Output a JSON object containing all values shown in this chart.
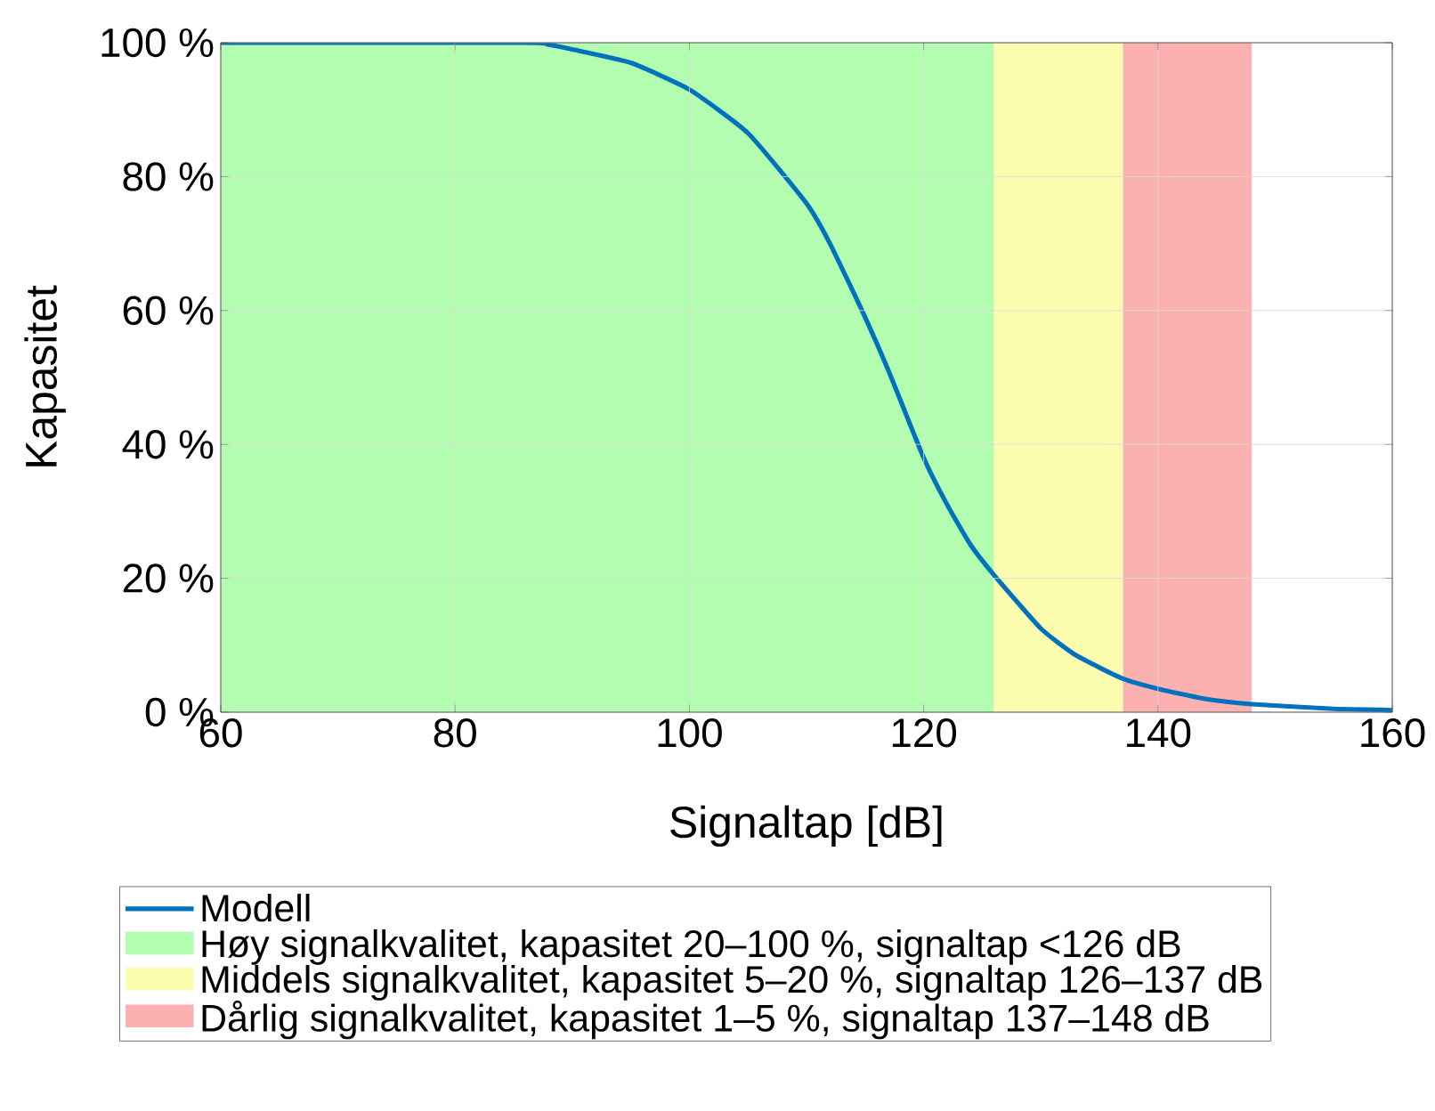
{
  "chart_data": {
    "type": "line",
    "xlabel": "Signaltap [dB]",
    "ylabel": "Kapasitet",
    "x": [
      60,
      86,
      88,
      90,
      95,
      100,
      105,
      110,
      112,
      115,
      117,
      120,
      122,
      124,
      126,
      130,
      133,
      137,
      140,
      144,
      148,
      155,
      160
    ],
    "series": [
      {
        "name": "Modell",
        "color": "#0072bd",
        "values": [
          100,
          100,
          99.7,
          99,
          97,
          93,
          86.5,
          76,
          70,
          59,
          51,
          38,
          31,
          25,
          20.5,
          12.5,
          8.5,
          5,
          3.5,
          2,
          1.2,
          0.5,
          0.3
        ]
      }
    ],
    "xlim": [
      60,
      160
    ],
    "ylim": [
      0,
      100
    ],
    "xticks": [
      60,
      80,
      100,
      120,
      140,
      160
    ],
    "yticks": [
      {
        "value": 0,
        "label": "0 %"
      },
      {
        "value": 20,
        "label": "20 %"
      },
      {
        "value": 40,
        "label": "40 %"
      },
      {
        "value": 60,
        "label": "60 %"
      },
      {
        "value": 80,
        "label": "80 %"
      },
      {
        "value": 100,
        "label": "100 %"
      }
    ],
    "bands": [
      {
        "axis": "x",
        "from": 60,
        "to": 126,
        "label": "Høy signalkvalitet, kapasitet 20–100 %, signaltap <126 dB",
        "color": "#b3fdb0"
      },
      {
        "axis": "x",
        "from": 126,
        "to": 137,
        "label": "Middels signalkvalitet, kapasitet 5–20 %, signaltap 126–137 dB",
        "color": "#fdfdb0"
      },
      {
        "axis": "x",
        "from": 137,
        "to": 148,
        "label": "Dårlig signalkvalitet, kapasitet 1–5 %, signaltap 137–148 dB",
        "color": "#fcb1b1"
      }
    ],
    "grid": true,
    "legend": "bottom",
    "line_style": "solid",
    "marker": "none"
  }
}
